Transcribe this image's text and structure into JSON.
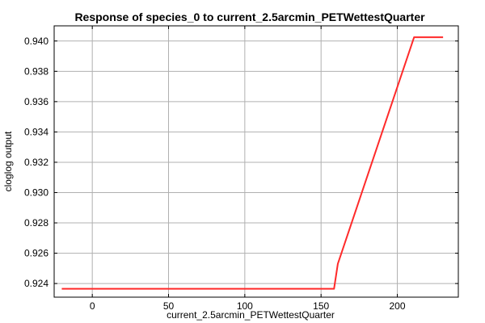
{
  "chart_data": {
    "type": "line",
    "title": "Response of species_0 to current_2.5arcmin_PETWettestQuarter",
    "xlabel": "current_2.5arcmin_PETWettestQuarter",
    "ylabel": "cloglog output",
    "xlim": [
      -25,
      240
    ],
    "ylim": [
      0.9231,
      0.941
    ],
    "xticks": [
      0,
      50,
      100,
      150,
      200
    ],
    "yticks": [
      0.924,
      0.926,
      0.928,
      0.93,
      0.932,
      0.934,
      0.936,
      0.938,
      0.94
    ],
    "ytick_labels": [
      "0.924",
      "0.926",
      "0.928",
      "0.930",
      "0.932",
      "0.934",
      "0.936",
      "0.938",
      "0.940"
    ],
    "xtick_labels": [
      "0",
      "50",
      "100",
      "150",
      "200"
    ],
    "grid": true,
    "series": [
      {
        "color": "#ff2a2a",
        "x": [
          -20,
          158.5,
          161,
          211,
          230
        ],
        "y": [
          0.92365,
          0.92365,
          0.9253,
          0.94025,
          0.94025
        ]
      }
    ]
  }
}
